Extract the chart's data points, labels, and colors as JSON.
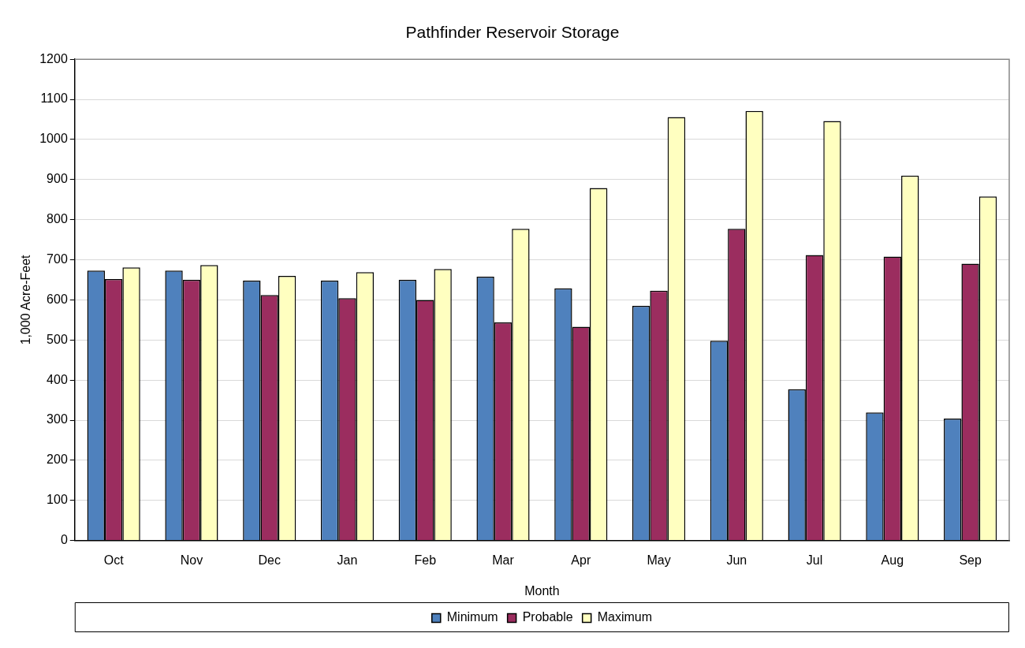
{
  "chart_data": {
    "type": "bar",
    "title": "Pathfinder Reservoir Storage",
    "xlabel": "Month",
    "ylabel": "1,000 Acre-Feet",
    "categories": [
      "Oct",
      "Nov",
      "Dec",
      "Jan",
      "Feb",
      "Mar",
      "Apr",
      "May",
      "Jun",
      "Jul",
      "Aug",
      "Sep"
    ],
    "series": [
      {
        "name": "Minimum",
        "color": "#4f81bd",
        "values": [
          673,
          673,
          648,
          648,
          650,
          658,
          629,
          585,
          498,
          377,
          319,
          304
        ]
      },
      {
        "name": "Probable",
        "color": "#9b2d5f",
        "values": [
          652,
          650,
          612,
          604,
          600,
          544,
          533,
          623,
          777,
          712,
          708,
          690
        ]
      },
      {
        "name": "Maximum",
        "color": "#ffffc0",
        "values": [
          681,
          687,
          660,
          669,
          677,
          777,
          879,
          1056,
          1071,
          1046,
          910,
          858
        ]
      }
    ],
    "ylim": [
      0,
      1200
    ],
    "yticks": [
      0,
      100,
      200,
      300,
      400,
      500,
      600,
      700,
      800,
      900,
      1000,
      1100,
      1200
    ],
    "grid": "y",
    "legend": "bottom"
  }
}
